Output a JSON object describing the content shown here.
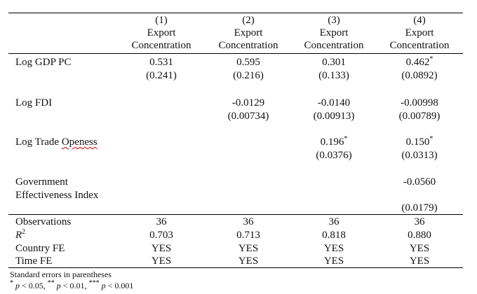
{
  "columns": [
    {
      "num": "(1)",
      "line1": "Export",
      "line2": "Concentration"
    },
    {
      "num": "(2)",
      "line1": "Export",
      "line2": "Concentration"
    },
    {
      "num": "(3)",
      "line1": "Export",
      "line2": "Concentration"
    },
    {
      "num": "(4)",
      "line1": "Export",
      "line2": "Concentration"
    }
  ],
  "rows": {
    "gdp": {
      "label": "Log GDP PC",
      "coef": [
        "0.531",
        "0.595",
        "0.301",
        "0.462"
      ],
      "se": [
        "(0.241)",
        "(0.216)",
        "(0.133)",
        "(0.0892)"
      ],
      "stars": [
        "",
        "",
        "",
        "*"
      ]
    },
    "fdi": {
      "label": "Log FDI",
      "coef": [
        "",
        "-0.0129",
        "-0.0140",
        "-0.00998"
      ],
      "se": [
        "",
        "(0.00734)",
        "(0.00913)",
        "(0.00789)"
      ]
    },
    "trade": {
      "label_a": "Log Trade ",
      "label_b": "Openess",
      "coef": [
        "",
        "",
        "0.196",
        "0.150"
      ],
      "se": [
        "",
        "",
        "(0.0376)",
        "(0.0313)"
      ],
      "stars": [
        "",
        "",
        "*",
        "*"
      ]
    },
    "gov": {
      "label_line1": "Government",
      "label_line2": "Effectiveness Index",
      "coef": [
        "",
        "",
        "",
        "-0.0560"
      ],
      "se": [
        "",
        "",
        "",
        "(0.0179)"
      ]
    }
  },
  "stats": {
    "observations": {
      "label": "Observations",
      "values": [
        "36",
        "36",
        "36",
        "36"
      ]
    },
    "r2": {
      "label": "R",
      "sup": "2",
      "values": [
        "0.703",
        "0.713",
        "0.818",
        "0.880"
      ]
    },
    "country_fe": {
      "label": "Country FE",
      "values": [
        "YES",
        "YES",
        "YES",
        "YES"
      ]
    },
    "time_fe": {
      "label": "Time FE",
      "values": [
        "YES",
        "YES",
        "YES",
        "YES"
      ]
    }
  },
  "notes": {
    "line1": "Standard errors in parentheses",
    "p1_star": "*",
    "p1_a": "p",
    "p1_b": " < 0.05, ",
    "p2_star": "**",
    "p2_a": "p",
    "p2_b": " < 0.01, ",
    "p3_star": "***",
    "p3_a": "p",
    "p3_b": " < 0.001"
  }
}
